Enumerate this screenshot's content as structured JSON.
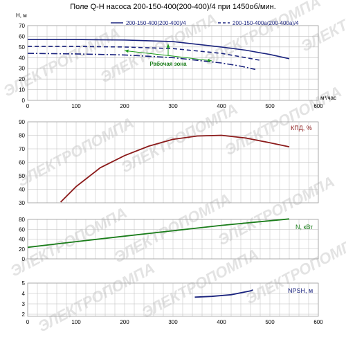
{
  "chart_title": "Поле Q-H насоса 200-150-400(200-400)/4 при 1450об/мин.",
  "watermark": "ЭЛЕКТРОПОМПА",
  "colors": {
    "pump_main": "#1a237e",
    "pump_trim": "#1a237e",
    "efficiency": "#8b1a1a",
    "power": "#1b7d1b",
    "npsh": "#1a237e",
    "zone": "#1b9b1b",
    "grid": "#bdbdbd"
  },
  "chart_data": [
    {
      "type": "line",
      "ylabel": "H, м",
      "xlabel": "м³/час",
      "xlim": [
        0,
        600
      ],
      "ylim": [
        0,
        70
      ],
      "x_ticks": [
        0,
        100,
        200,
        300,
        400,
        500,
        600
      ],
      "y_ticks": [
        0,
        10,
        20,
        30,
        40,
        50,
        60,
        70
      ],
      "grid": true,
      "legend_position": "top-right",
      "series": [
        {
          "name": "200-150-400(200-400)/4",
          "style": "solid",
          "points": [
            [
              0,
              57
            ],
            [
              100,
              57
            ],
            [
              200,
              56.5
            ],
            [
              300,
              55
            ],
            [
              400,
              50
            ],
            [
              450,
              47
            ],
            [
              500,
              43
            ],
            [
              540,
              39
            ]
          ]
        },
        {
          "name": "200-150-400а(200-400а)/4",
          "style": "dashed",
          "points": [
            [
              0,
              50.5
            ],
            [
              100,
              50.5
            ],
            [
              200,
              50
            ],
            [
              300,
              48.5
            ],
            [
              400,
              44
            ],
            [
              450,
              40
            ],
            [
              480,
              37.5
            ]
          ]
        },
        {
          "name": "",
          "style": "dashdot",
          "points": [
            [
              0,
              44
            ],
            [
              100,
              43.5
            ],
            [
              200,
              42.5
            ],
            [
              300,
              40
            ],
            [
              400,
              35
            ],
            [
              440,
              32
            ],
            [
              470,
              29
            ]
          ]
        }
      ],
      "annotation": {
        "text": "Рабочая зона",
        "points": [
          [
            200,
            46.5
          ],
          [
            290,
            42
          ],
          [
            380,
            37
          ],
          [
            290,
            53
          ]
        ]
      }
    },
    {
      "type": "line",
      "ylabel": "КПД, %",
      "xlim": [
        0,
        600
      ],
      "ylim": [
        30,
        90
      ],
      "y_ticks": [
        30,
        40,
        50,
        60,
        70,
        80,
        90
      ],
      "grid": true,
      "series": [
        {
          "name": "КПД, %",
          "points": [
            [
              68,
              30.5
            ],
            [
              100,
              42
            ],
            [
              150,
              56
            ],
            [
              200,
              65
            ],
            [
              250,
              72
            ],
            [
              300,
              77
            ],
            [
              350,
              79.5
            ],
            [
              400,
              80
            ],
            [
              450,
              78
            ],
            [
              500,
              74.5
            ],
            [
              540,
              71.5
            ]
          ]
        }
      ]
    },
    {
      "type": "line",
      "ylabel": "N, кВт",
      "xlim": [
        0,
        600
      ],
      "ylim": [
        0,
        80
      ],
      "y_ticks": [
        0,
        20,
        40,
        60,
        80
      ],
      "grid": true,
      "series": [
        {
          "name": "N, кВт",
          "points": [
            [
              0,
              23.5
            ],
            [
              100,
              35
            ],
            [
              200,
              46
            ],
            [
              300,
              57
            ],
            [
              400,
              68
            ],
            [
              540,
              81
            ]
          ]
        }
      ]
    },
    {
      "type": "line",
      "ylabel": "NPSH, м",
      "xlim": [
        0,
        600
      ],
      "ylim": [
        1.8,
        5
      ],
      "y_ticks": [
        2,
        3,
        4,
        5
      ],
      "x_ticks": [
        0,
        100,
        200,
        300,
        400,
        500,
        600
      ],
      "grid": true,
      "series": [
        {
          "name": "NPSH, м",
          "points": [
            [
              345,
              3.65
            ],
            [
              380,
              3.72
            ],
            [
              420,
              3.88
            ],
            [
              460,
              4.25
            ],
            [
              465,
              4.35
            ]
          ]
        }
      ]
    }
  ]
}
